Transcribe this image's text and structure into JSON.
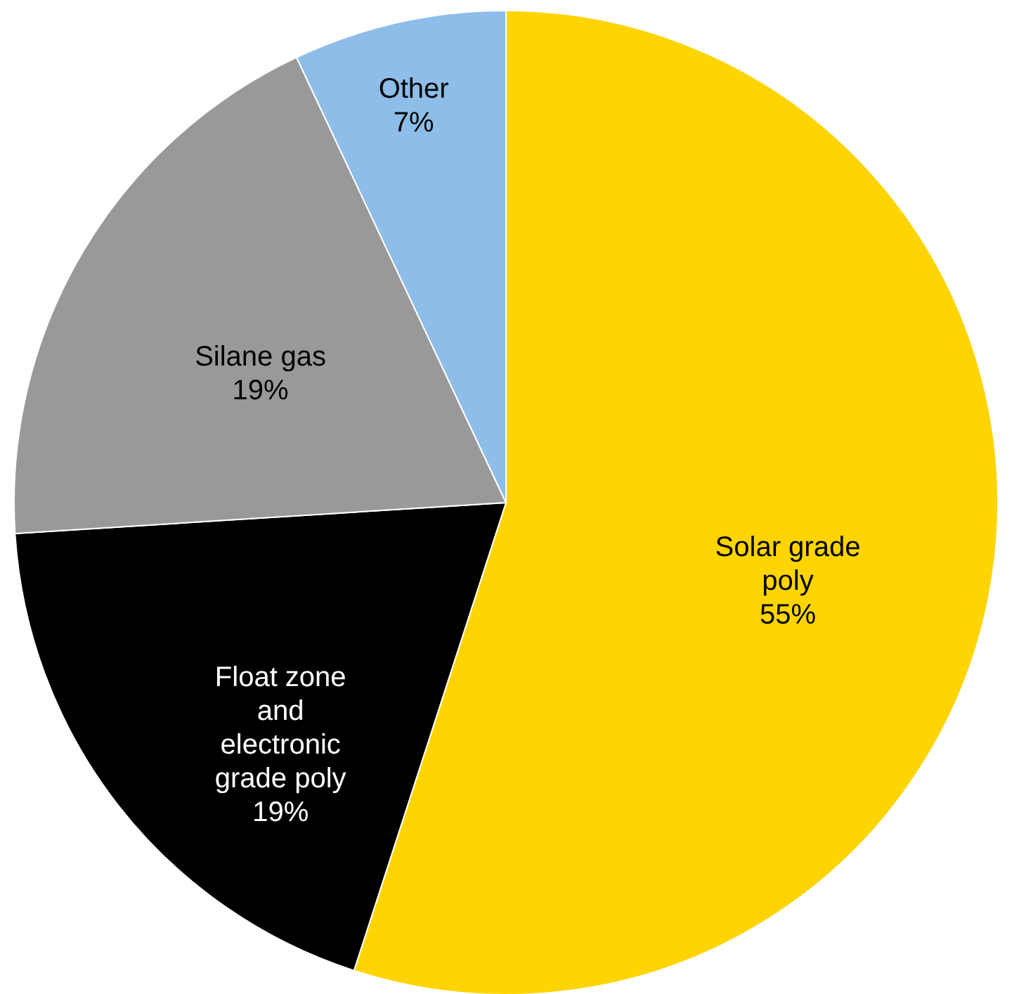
{
  "chart_data": {
    "type": "pie",
    "categories": [
      "Solar grade poly",
      "Float zone and electronic grade poly",
      "Silane gas",
      "Other"
    ],
    "values": [
      55,
      19,
      19,
      7
    ],
    "value_labels": [
      "55%",
      "19%",
      "19%",
      "7%"
    ],
    "colors": [
      "#ffd400",
      "#000000",
      "#999999",
      "#8dbde8"
    ],
    "legend": false
  }
}
